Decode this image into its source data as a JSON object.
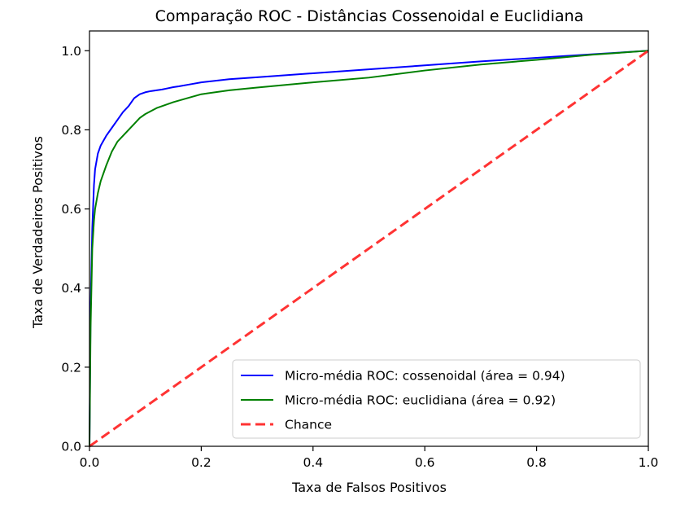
{
  "chart_data": {
    "type": "line",
    "title": "Comparação ROC - Distâncias Cossenoidal e Euclidiana",
    "xlabel": "Taxa de Falsos Positivos",
    "ylabel": "Taxa de Verdadeiros Positivos",
    "xlim": [
      0.0,
      1.0
    ],
    "ylim": [
      0.0,
      1.05
    ],
    "x_ticks": [
      0.0,
      0.2,
      0.4,
      0.6,
      0.8,
      1.0
    ],
    "x_tick_labels": [
      "0.0",
      "0.2",
      "0.4",
      "0.6",
      "0.8",
      "1.0"
    ],
    "y_ticks": [
      0.0,
      0.2,
      0.4,
      0.6,
      0.8,
      1.0
    ],
    "y_tick_labels": [
      "0.0",
      "0.2",
      "0.4",
      "0.6",
      "0.8",
      "1.0"
    ],
    "grid": false,
    "legend_position": "lower-right",
    "series": [
      {
        "name": "Micro-média ROC: cossenoidal (área = 0.94)",
        "color": "#0000ff",
        "dash": "solid",
        "x": [
          0.0,
          0.002,
          0.005,
          0.008,
          0.01,
          0.015,
          0.02,
          0.03,
          0.04,
          0.05,
          0.06,
          0.07,
          0.08,
          0.09,
          0.1,
          0.11,
          0.12,
          0.13,
          0.14,
          0.15,
          0.16,
          0.18,
          0.2,
          0.25,
          0.3,
          0.4,
          0.5,
          0.6,
          0.7,
          0.8,
          0.9,
          1.0
        ],
        "y": [
          0.0,
          0.35,
          0.55,
          0.66,
          0.7,
          0.74,
          0.76,
          0.785,
          0.805,
          0.825,
          0.845,
          0.86,
          0.88,
          0.89,
          0.895,
          0.898,
          0.9,
          0.902,
          0.905,
          0.908,
          0.91,
          0.915,
          0.92,
          0.928,
          0.933,
          0.943,
          0.953,
          0.963,
          0.973,
          0.982,
          0.991,
          1.0
        ]
      },
      {
        "name": "Micro-média ROC: euclidiana (área = 0.92)",
        "color": "#008000",
        "dash": "solid",
        "x": [
          0.0,
          0.002,
          0.005,
          0.008,
          0.01,
          0.015,
          0.02,
          0.03,
          0.04,
          0.05,
          0.06,
          0.07,
          0.08,
          0.09,
          0.1,
          0.12,
          0.15,
          0.18,
          0.2,
          0.25,
          0.3,
          0.4,
          0.5,
          0.6,
          0.7,
          0.8,
          0.9,
          1.0
        ],
        "y": [
          0.0,
          0.3,
          0.5,
          0.57,
          0.6,
          0.64,
          0.67,
          0.71,
          0.745,
          0.77,
          0.785,
          0.8,
          0.815,
          0.83,
          0.84,
          0.855,
          0.87,
          0.882,
          0.89,
          0.9,
          0.907,
          0.92,
          0.932,
          0.95,
          0.965,
          0.977,
          0.99,
          1.0
        ]
      },
      {
        "name": "Chance",
        "color": "#ff3333",
        "dash": "dashed",
        "x": [
          0.0,
          1.0
        ],
        "y": [
          0.0,
          1.0
        ]
      }
    ]
  }
}
